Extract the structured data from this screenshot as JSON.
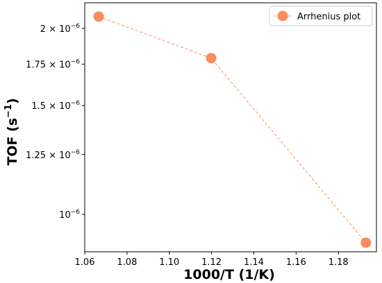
{
  "chart_data": {
    "type": "line",
    "xlabel": "1000/T (1/K)",
    "ylabel": "TOF (s",
    "ylabel_superscript": "−1",
    "ylabel_close": ")",
    "y_scale": "log",
    "grid": false,
    "legend_position": "top-right",
    "xlim": [
      1.06,
      1.198
    ],
    "ylim": [
      8.7e-07,
      2.2e-06
    ],
    "x_ticks": [
      {
        "value": 1.06,
        "label": "1.06"
      },
      {
        "value": 1.08,
        "label": "1.08"
      },
      {
        "value": 1.1,
        "label": "1.10"
      },
      {
        "value": 1.12,
        "label": "1.12"
      },
      {
        "value": 1.14,
        "label": "1.14"
      },
      {
        "value": 1.16,
        "label": "1.16"
      },
      {
        "value": 1.18,
        "label": "1.18"
      }
    ],
    "y_ticks": [
      {
        "value": 2e-06,
        "mantissa": "2",
        "label": "2 × 10−6"
      },
      {
        "value": 1.75e-06,
        "mantissa": "1.75",
        "label": "1.75 × 10−6"
      },
      {
        "value": 1.5e-06,
        "mantissa": "1.5",
        "label": "1.5 × 10−6"
      },
      {
        "value": 1.25e-06,
        "mantissa": "1.25",
        "label": "1.25 × 10−6"
      },
      {
        "value": 1e-06,
        "mantissa": "",
        "label": "10−6"
      }
    ],
    "tick_base": "10",
    "tick_exponent": "−6",
    "series": [
      {
        "name": "Arrhenius plot",
        "color": "#FA8C5F",
        "line_style": "dashed",
        "marker": "circle",
        "x": [
          1.0666,
          1.1198,
          1.193
        ],
        "y": [
          2.09e-06,
          1.79e-06,
          9e-07
        ]
      }
    ]
  }
}
